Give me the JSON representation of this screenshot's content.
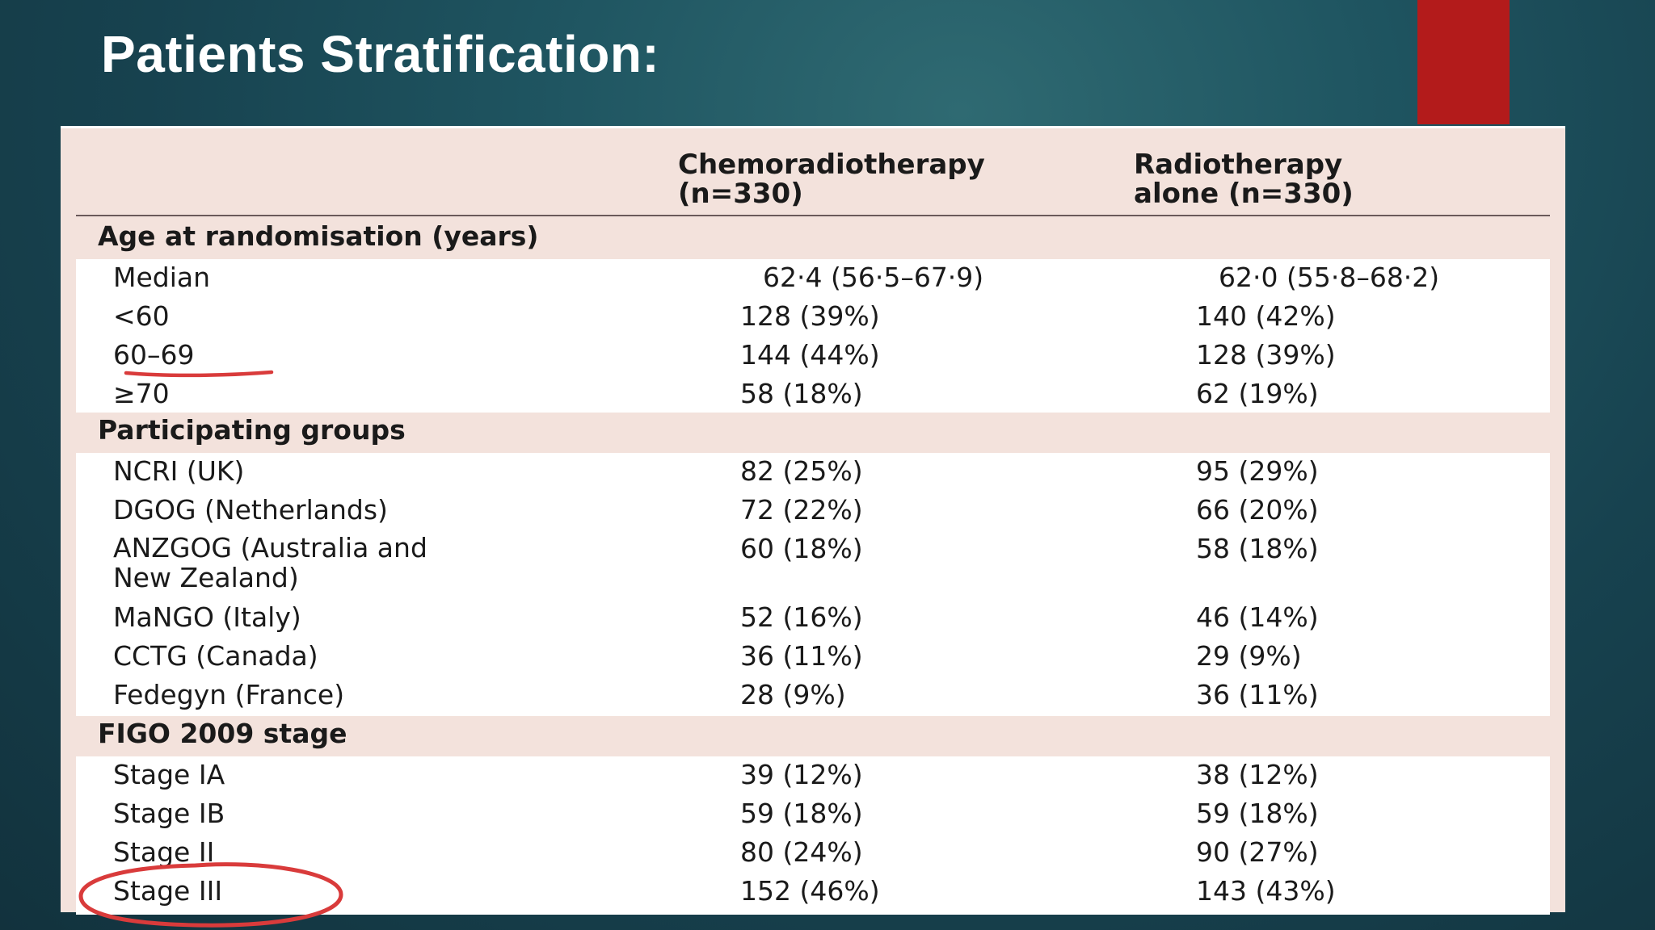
{
  "slide": {
    "title": "Patients Stratification:"
  },
  "table": {
    "columns": [
      "Chemoradiotherapy\n(n=330)",
      "Radiotherapy\nalone (n=330)"
    ],
    "sections": [
      {
        "label": "Age at randomisation (years)",
        "rows": [
          {
            "label": "Median",
            "chemo": "62·4 (56·5–67·9)",
            "radio": "62·0 (55·8–68·2)"
          },
          {
            "label": "<60",
            "chemo": "128 (39%)",
            "radio": "140 (42%)"
          },
          {
            "label": "60–69",
            "chemo": "144 (44%)",
            "radio": "128 (39%)"
          },
          {
            "label": "≥70",
            "chemo": "58 (18%)",
            "radio": "62 (19%)"
          }
        ]
      },
      {
        "label": "Participating groups",
        "rows": [
          {
            "label": "NCRI (UK)",
            "chemo": "82 (25%)",
            "radio": "95 (29%)"
          },
          {
            "label": "DGOG (Netherlands)",
            "chemo": "72 (22%)",
            "radio": "66 (20%)"
          },
          {
            "label": "ANZGOG (Australia and\nNew Zealand)",
            "chemo": "60 (18%)",
            "radio": "58 (18%)"
          },
          {
            "label": "MaNGO (Italy)",
            "chemo": "52 (16%)",
            "radio": "46 (14%)"
          },
          {
            "label": "CCTG (Canada)",
            "chemo": "36 (11%)",
            "radio": "29 (9%)"
          },
          {
            "label": "Fedegyn (France)",
            "chemo": "28 (9%)",
            "radio": "36 (11%)"
          }
        ]
      },
      {
        "label": "FIGO 2009 stage",
        "rows": [
          {
            "label": "Stage IA",
            "chemo": "39 (12%)",
            "radio": "38 (12%)"
          },
          {
            "label": "Stage IB",
            "chemo": "59 (18%)",
            "radio": "59 (18%)"
          },
          {
            "label": "Stage II",
            "chemo": "80 (24%)",
            "radio": "90 (27%)"
          },
          {
            "label": "Stage III",
            "chemo": "152 (46%)",
            "radio": "143 (43%)"
          }
        ]
      }
    ]
  },
  "colors": {
    "accent": "#b31b1b",
    "annotation_ink": "#d93b3b",
    "section_band": "#f3e2dc"
  }
}
